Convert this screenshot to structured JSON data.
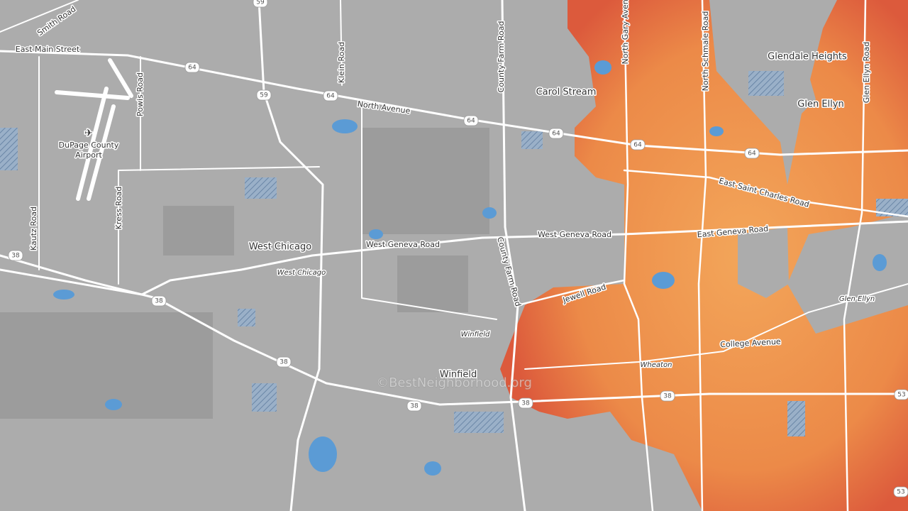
{
  "map": {
    "places": [
      "Carol Stream",
      "Glendale Heights",
      "Glen Ellyn",
      "West Chicago",
      "Winfield"
    ],
    "airport": [
      "DuPage County",
      "Airport"
    ],
    "minor_places": [
      "West Chicago",
      "Winfield",
      "Wheaton",
      "Glen Ellyn"
    ],
    "roads": [
      "Smith Road",
      "East Main Street",
      "Klein Road",
      "Powis Road",
      "North Avenue",
      "County Farm Road",
      "North Gary Avenue",
      "North Schmale Road",
      "Glen Ellyn Road",
      "East Saint Charles Road",
      "East Geneva Road",
      "West Geneva Road",
      "West Geneva Road",
      "Kress Road",
      "Kautz Road",
      "County Farm Road",
      "Jewell Road",
      "College Avenue"
    ],
    "shields": [
      "59",
      "59",
      "64",
      "64",
      "64",
      "64",
      "64",
      "64",
      "38",
      "38",
      "38",
      "38",
      "38",
      "38",
      "53",
      "53"
    ],
    "watermark": "©BestNeighborhood.org"
  }
}
